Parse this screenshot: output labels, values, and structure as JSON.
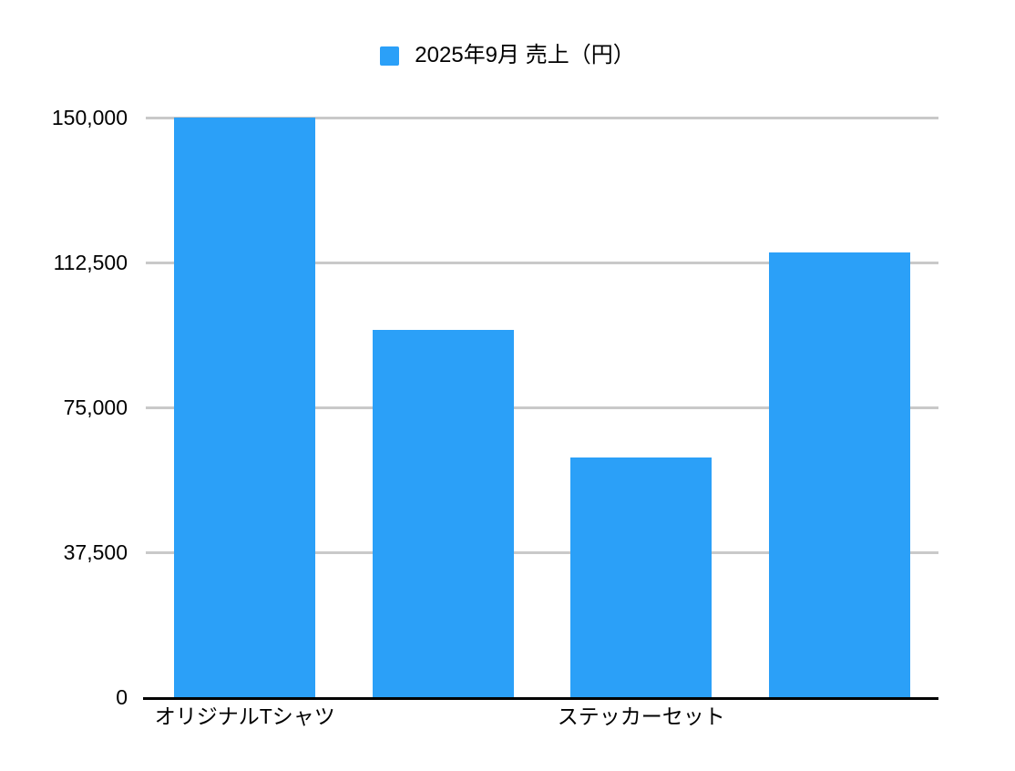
{
  "chart_data": {
    "type": "bar",
    "title": "",
    "legend": "2025年9月 売上（円）",
    "legend_position": "top-center",
    "values": [
      150000,
      95000,
      62000,
      115000
    ],
    "x_ticks": [
      {
        "label": "オリジナルTシャツ",
        "bar_index": 0
      },
      {
        "label": "ステッカーセット",
        "bar_index": 2
      }
    ],
    "y_ticks": [
      0,
      37500,
      75000,
      112500,
      150000
    ],
    "y_tick_labels": [
      "0",
      "37,500",
      "75,000",
      "112,500",
      "150,000"
    ],
    "ylim": [
      0,
      150000
    ],
    "grid": true,
    "bar_color": "#2BA0F8",
    "gridline_color": "#C9C9C9",
    "axis_color": "#000000",
    "text_color": "#000000",
    "background_color": "#FFFFFF"
  }
}
